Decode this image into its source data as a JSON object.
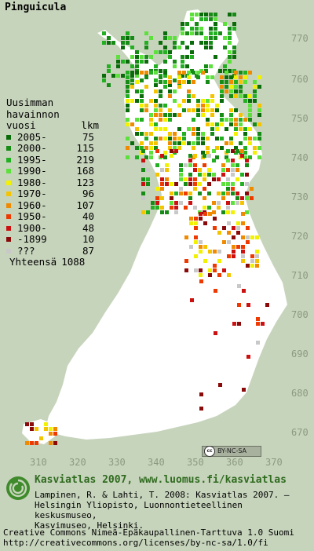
{
  "title": "Pinguicula",
  "y_ticks": [
    "770",
    "760",
    "750",
    "740",
    "730",
    "720",
    "710",
    "700",
    "690",
    "680",
    "670"
  ],
  "x_ticks": [
    "310",
    "320",
    "330",
    "340",
    "350",
    "360",
    "370"
  ],
  "legend": {
    "header_line1": "Uusimman",
    "header_line2": "havainnon",
    "header_vuosi": "vuosi",
    "header_lkm": "lkm",
    "entries": [
      {
        "label": "2005-",
        "count": "75",
        "color": "#0a6b0a"
      },
      {
        "label": "2000-",
        "count": "115",
        "color": "#168c16"
      },
      {
        "label": "1995-",
        "count": "219",
        "color": "#22b022"
      },
      {
        "label": "1990-",
        "count": "168",
        "color": "#5ce03c"
      },
      {
        "label": "1980-",
        "count": "123",
        "color": "#f2f200"
      },
      {
        "label": "1970-",
        "count": "96",
        "color": "#f5c400"
      },
      {
        "label": "1960-",
        "count": "107",
        "color": "#f08a00"
      },
      {
        "label": "1950-",
        "count": "40",
        "color": "#ee3a00"
      },
      {
        "label": "1900-",
        "count": "48",
        "color": "#cc1010"
      },
      {
        "label": "-1899",
        "count": "10",
        "color": "#8a0a0a"
      },
      {
        "label": "???",
        "count": "87",
        "color": "#c8c8c8"
      }
    ],
    "total_label": "Yhteensä",
    "total_count": "1088"
  },
  "cc_badge": {
    "logo": "cc",
    "text": "BY-NC-SA"
  },
  "footer": {
    "brand": "Kasviatlas 2007, www.luomus.fi/kasviatlas",
    "citation_1": "Lampinen, R. & Lahti, T. 2008: Kasviatlas 2007. –",
    "citation_2": "Helsingin Yliopisto, Luonnontieteellinen keskusmuseo,",
    "citation_3": "Kasvimuseo, Helsinki.",
    "license_1": "Creative Commons Nimeä-Epäkaupallinen-Tarttuva 1.0 Suomi",
    "license_2": "http://creativecommons.org/licenses/by-nc-sa/1.0/fi"
  }
}
